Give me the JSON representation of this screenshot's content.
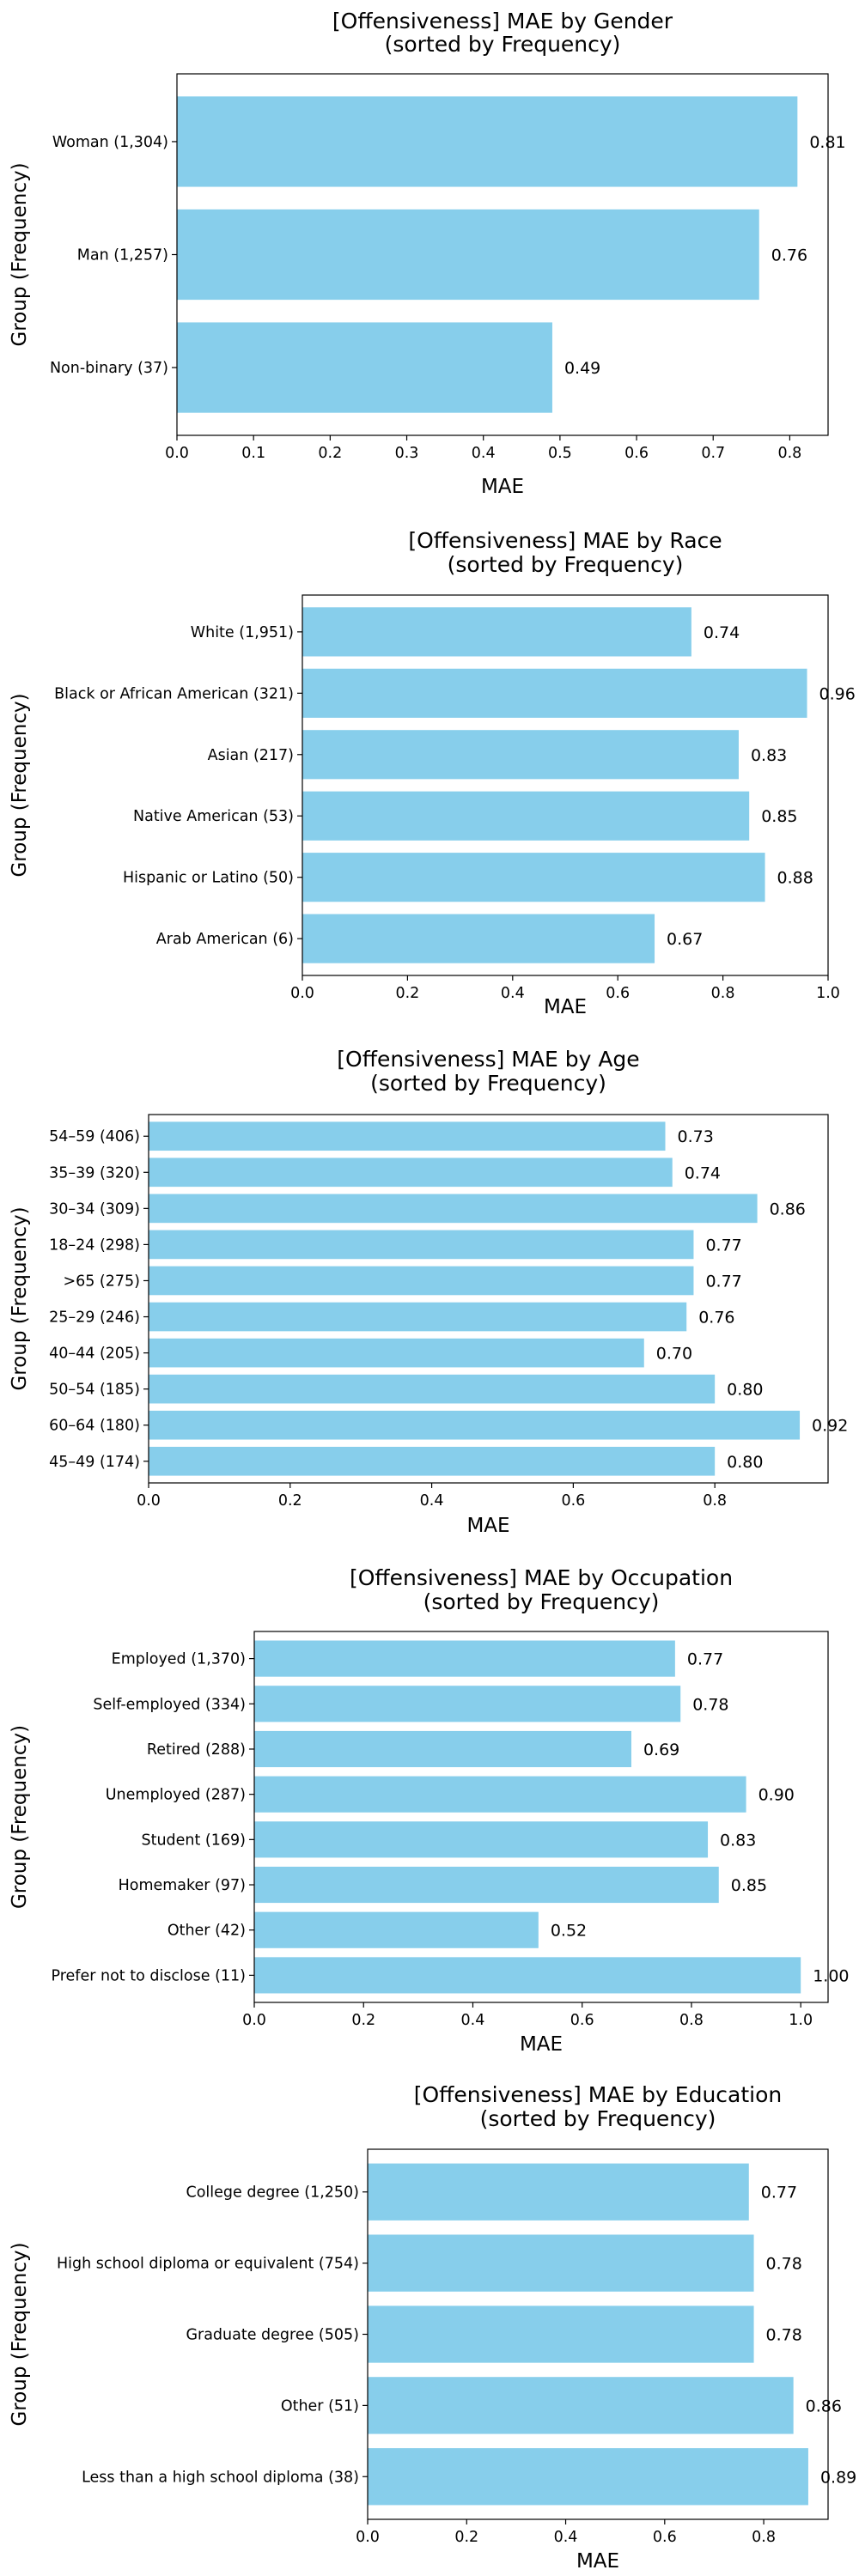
{
  "chart_data": [
    {
      "type": "bar",
      "orientation": "horizontal",
      "title": [
        "[Offensiveness] MAE by Gender",
        "(sorted by Frequency)"
      ],
      "xlabel": "MAE",
      "ylabel": "Group (Frequency)",
      "categories": [
        "Woman (1,304)",
        "Man (1,257)",
        "Non-binary (37)"
      ],
      "values": [
        0.81,
        0.76,
        0.49
      ],
      "value_labels": [
        "0.81",
        "0.76",
        "0.49"
      ],
      "xlim": [
        0,
        0.85
      ],
      "xticks": [
        0.0,
        0.1,
        0.2,
        0.3,
        0.4,
        0.5,
        0.6,
        0.7,
        0.8
      ],
      "xtick_labels": [
        "0.0",
        "0.1",
        "0.2",
        "0.3",
        "0.4",
        "0.5",
        "0.6",
        "0.7",
        "0.8"
      ],
      "bar_color": "#87CEEB",
      "grid": false
    },
    {
      "type": "bar",
      "orientation": "horizontal",
      "title": [
        "[Offensiveness] MAE by Race",
        "(sorted by Frequency)"
      ],
      "xlabel": "MAE",
      "ylabel": "Group (Frequency)",
      "categories": [
        "White (1,951)",
        "Black or African American (321)",
        "Asian (217)",
        "Native American (53)",
        "Hispanic or Latino (50)",
        "Arab American (6)"
      ],
      "values": [
        0.74,
        0.96,
        0.83,
        0.85,
        0.88,
        0.67
      ],
      "value_labels": [
        "0.74",
        "0.96",
        "0.83",
        "0.85",
        "0.88",
        "0.67"
      ],
      "xlim": [
        0,
        1.0
      ],
      "xticks": [
        0.0,
        0.2,
        0.4,
        0.6,
        0.8,
        1.0
      ],
      "xtick_labels": [
        "0.0",
        "0.2",
        "0.4",
        "0.6",
        "0.8",
        "1.0"
      ],
      "bar_color": "#87CEEB",
      "grid": false
    },
    {
      "type": "bar",
      "orientation": "horizontal",
      "title": [
        "[Offensiveness] MAE by Age",
        "(sorted by Frequency)"
      ],
      "xlabel": "MAE",
      "ylabel": "Group (Frequency)",
      "categories": [
        "54–59 (406)",
        "35–39 (320)",
        "30–34 (309)",
        "18–24 (298)",
        ">65 (275)",
        "25–29 (246)",
        "40–44 (205)",
        "50–54 (185)",
        "60–64 (180)",
        "45–49 (174)"
      ],
      "values": [
        0.73,
        0.74,
        0.86,
        0.77,
        0.77,
        0.76,
        0.7,
        0.8,
        0.92,
        0.8
      ],
      "value_labels": [
        "0.73",
        "0.74",
        "0.86",
        "0.77",
        "0.77",
        "0.76",
        "0.70",
        "0.80",
        "0.92",
        "0.80"
      ],
      "xlim": [
        0,
        0.96
      ],
      "xticks": [
        0.0,
        0.2,
        0.4,
        0.6,
        0.8
      ],
      "xtick_labels": [
        "0.0",
        "0.2",
        "0.4",
        "0.6",
        "0.8"
      ],
      "bar_color": "#87CEEB",
      "grid": false
    },
    {
      "type": "bar",
      "orientation": "horizontal",
      "title": [
        "[Offensiveness] MAE by Occupation",
        "(sorted by Frequency)"
      ],
      "xlabel": "MAE",
      "ylabel": "Group (Frequency)",
      "categories": [
        "Employed (1,370)",
        "Self-employed (334)",
        "Retired (288)",
        "Unemployed (287)",
        "Student (169)",
        "Homemaker (97)",
        "Other (42)",
        "Prefer not to disclose (11)"
      ],
      "values": [
        0.77,
        0.78,
        0.69,
        0.9,
        0.83,
        0.85,
        0.52,
        1.0
      ],
      "value_labels": [
        "0.77",
        "0.78",
        "0.69",
        "0.90",
        "0.83",
        "0.85",
        "0.52",
        "1.00"
      ],
      "xlim": [
        0,
        1.05
      ],
      "xticks": [
        0.0,
        0.2,
        0.4,
        0.6,
        0.8,
        1.0
      ],
      "xtick_labels": [
        "0.0",
        "0.2",
        "0.4",
        "0.6",
        "0.8",
        "1.0"
      ],
      "bar_color": "#87CEEB",
      "grid": false
    },
    {
      "type": "bar",
      "orientation": "horizontal",
      "title": [
        "[Offensiveness] MAE by Education",
        "(sorted by Frequency)"
      ],
      "xlabel": "MAE",
      "ylabel": "Group (Frequency)",
      "categories": [
        "College degree (1,250)",
        "High school diploma or equivalent (754)",
        "Graduate degree (505)",
        "Other (51)",
        "Less than a high school diploma (38)"
      ],
      "values": [
        0.77,
        0.78,
        0.78,
        0.86,
        0.89
      ],
      "value_labels": [
        "0.77",
        "0.78",
        "0.78",
        "0.86",
        "0.89"
      ],
      "xlim": [
        0,
        0.93
      ],
      "xticks": [
        0.0,
        0.2,
        0.4,
        0.6,
        0.8
      ],
      "xtick_labels": [
        "0.0",
        "0.2",
        "0.4",
        "0.6",
        "0.8"
      ],
      "bar_color": "#87CEEB",
      "grid": false
    }
  ]
}
